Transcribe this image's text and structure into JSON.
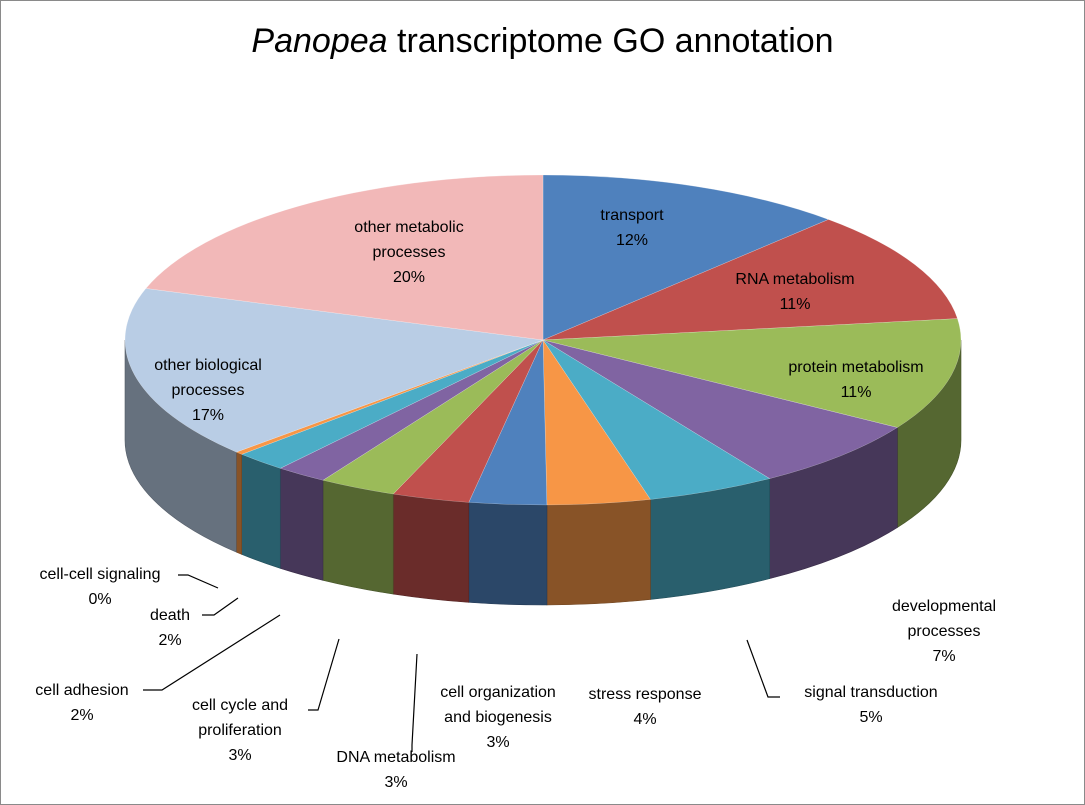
{
  "chart_data": {
    "type": "pie",
    "title_italic": "Panopea",
    "title_rest": " transcriptome GO annotation",
    "slices": [
      {
        "name": "transport",
        "pct": "12%",
        "value": 12,
        "color": "#4f81bd"
      },
      {
        "name": "RNA metabolism",
        "pct": "11%",
        "value": 11,
        "color": "#c0504d"
      },
      {
        "name": "protein metabolism",
        "pct": "11%",
        "value": 11,
        "color": "#9bbb59"
      },
      {
        "name": "developmental processes",
        "pct": "7%",
        "value": 7,
        "color": "#8064a2"
      },
      {
        "name": "signal transduction",
        "pct": "5%",
        "value": 5,
        "color": "#4bacc6"
      },
      {
        "name": "stress response",
        "pct": "4%",
        "value": 4,
        "color": "#f79646"
      },
      {
        "name": "cell organization and biogenesis",
        "pct": "3%",
        "value": 3,
        "color": "#4f81bd"
      },
      {
        "name": "DNA metabolism",
        "pct": "3%",
        "value": 3,
        "color": "#c0504d"
      },
      {
        "name": "cell cycle and proliferation",
        "pct": "3%",
        "value": 3,
        "color": "#9bbb59"
      },
      {
        "name": "cell adhesion",
        "pct": "2%",
        "value": 2,
        "color": "#8064a2"
      },
      {
        "name": "death",
        "pct": "2%",
        "value": 2,
        "color": "#4bacc6"
      },
      {
        "name": "cell-cell signaling",
        "pct": "0%",
        "value": 0.3,
        "color": "#f79646"
      },
      {
        "name": "other biological processes",
        "pct": "17%",
        "value": 17,
        "color": "#b9cde5"
      },
      {
        "name": "other metabolic processes",
        "pct": "20%",
        "value": 20,
        "color": "#f2b8b8"
      }
    ]
  }
}
